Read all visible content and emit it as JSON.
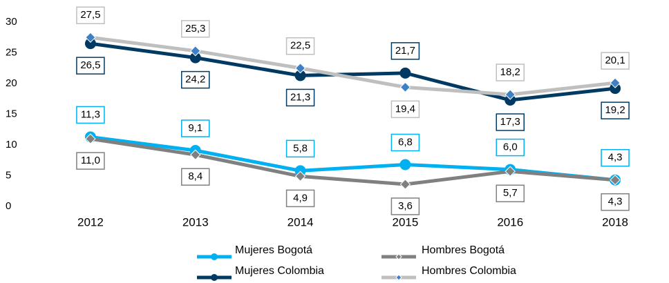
{
  "chart_data": {
    "type": "line",
    "categories": [
      "2012",
      "2013",
      "2014",
      "2015",
      "2016",
      "2018"
    ],
    "ylim": [
      0,
      30
    ],
    "yticks": [
      0,
      5,
      10,
      15,
      20,
      25,
      30
    ],
    "grid": false,
    "series": [
      {
        "name": "Mujeres Bogotá",
        "color": "#00b0f0",
        "marker": "circle",
        "marker_color": "#00b0f0",
        "values": [
          11.3,
          9.1,
          5.8,
          6.8,
          6.0,
          4.3
        ],
        "value_labels": [
          "11,3",
          "9,1",
          "5,8",
          "6,8",
          "6,0",
          "4,3"
        ]
      },
      {
        "name": "Hombres Bogotá",
        "color": "#808080",
        "marker": "diamond",
        "marker_color": "#808080",
        "values": [
          11.0,
          8.4,
          4.9,
          3.6,
          5.7,
          4.3
        ],
        "value_labels": [
          "11,0",
          "8,4",
          "4,9",
          "3,6",
          "5,7",
          "4,3"
        ]
      },
      {
        "name": "Mujeres Colombia",
        "color": "#003a63",
        "marker": "circle",
        "marker_color": "#003a63",
        "values": [
          26.5,
          24.2,
          21.3,
          21.7,
          17.3,
          19.2
        ],
        "value_labels": [
          "26,5",
          "24,2",
          "21,3",
          "21,7",
          "17,3",
          "19,2"
        ]
      },
      {
        "name": "Hombres Colombia",
        "color": "#bfbfbf",
        "marker": "diamond",
        "marker_color": "#3f7fc4",
        "values": [
          27.5,
          25.3,
          22.5,
          19.4,
          18.2,
          20.1
        ],
        "value_labels": [
          "27,5",
          "25,3",
          "22,5",
          "19,4",
          "18,2",
          "20,1"
        ]
      }
    ]
  }
}
